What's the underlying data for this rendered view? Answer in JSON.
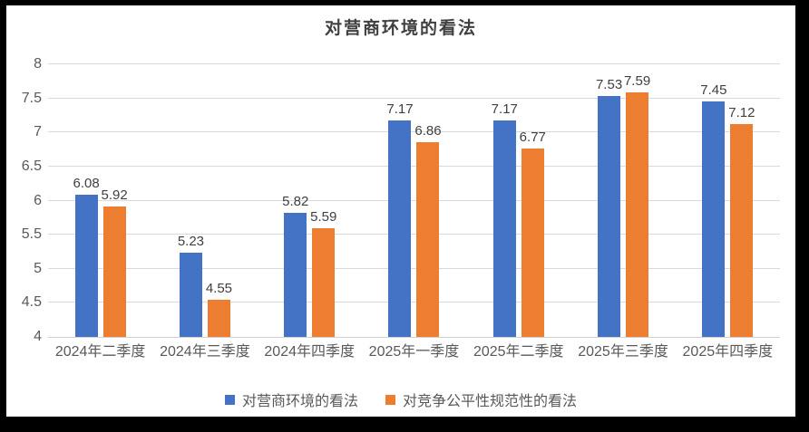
{
  "colors": {
    "series1": "#4472C4",
    "series2": "#ED7D31",
    "gridline": "#D9D9D9",
    "axis_text": "#595959",
    "data_label_text": "#404040",
    "title_text": "#404040",
    "frame": "#000000",
    "background": "#FFFFFF"
  },
  "chart_data": {
    "type": "bar",
    "title": "对营商环境的看法",
    "categories": [
      "2024年二季度",
      "2024年三季度",
      "2024年四季度",
      "2025年一季度",
      "2025年二季度",
      "2025年三季度",
      "2025年四季度"
    ],
    "series": [
      {
        "name": "对营商环境的看法",
        "color": "#4472C4",
        "values": [
          6.08,
          5.23,
          5.82,
          7.17,
          7.17,
          7.53,
          7.45
        ]
      },
      {
        "name": "对竞争公平性规范性的看法",
        "color": "#ED7D31",
        "values": [
          5.92,
          4.55,
          5.59,
          6.86,
          6.77,
          7.59,
          7.12
        ]
      }
    ],
    "xlabel": "",
    "ylabel": "",
    "ylim": [
      4,
      8
    ],
    "yticks": [
      4,
      4.5,
      5,
      5.5,
      6,
      6.5,
      7,
      7.5,
      8
    ],
    "grid": true,
    "legend_position": "bottom",
    "data_labels": true,
    "data_label_decimals": 2
  }
}
